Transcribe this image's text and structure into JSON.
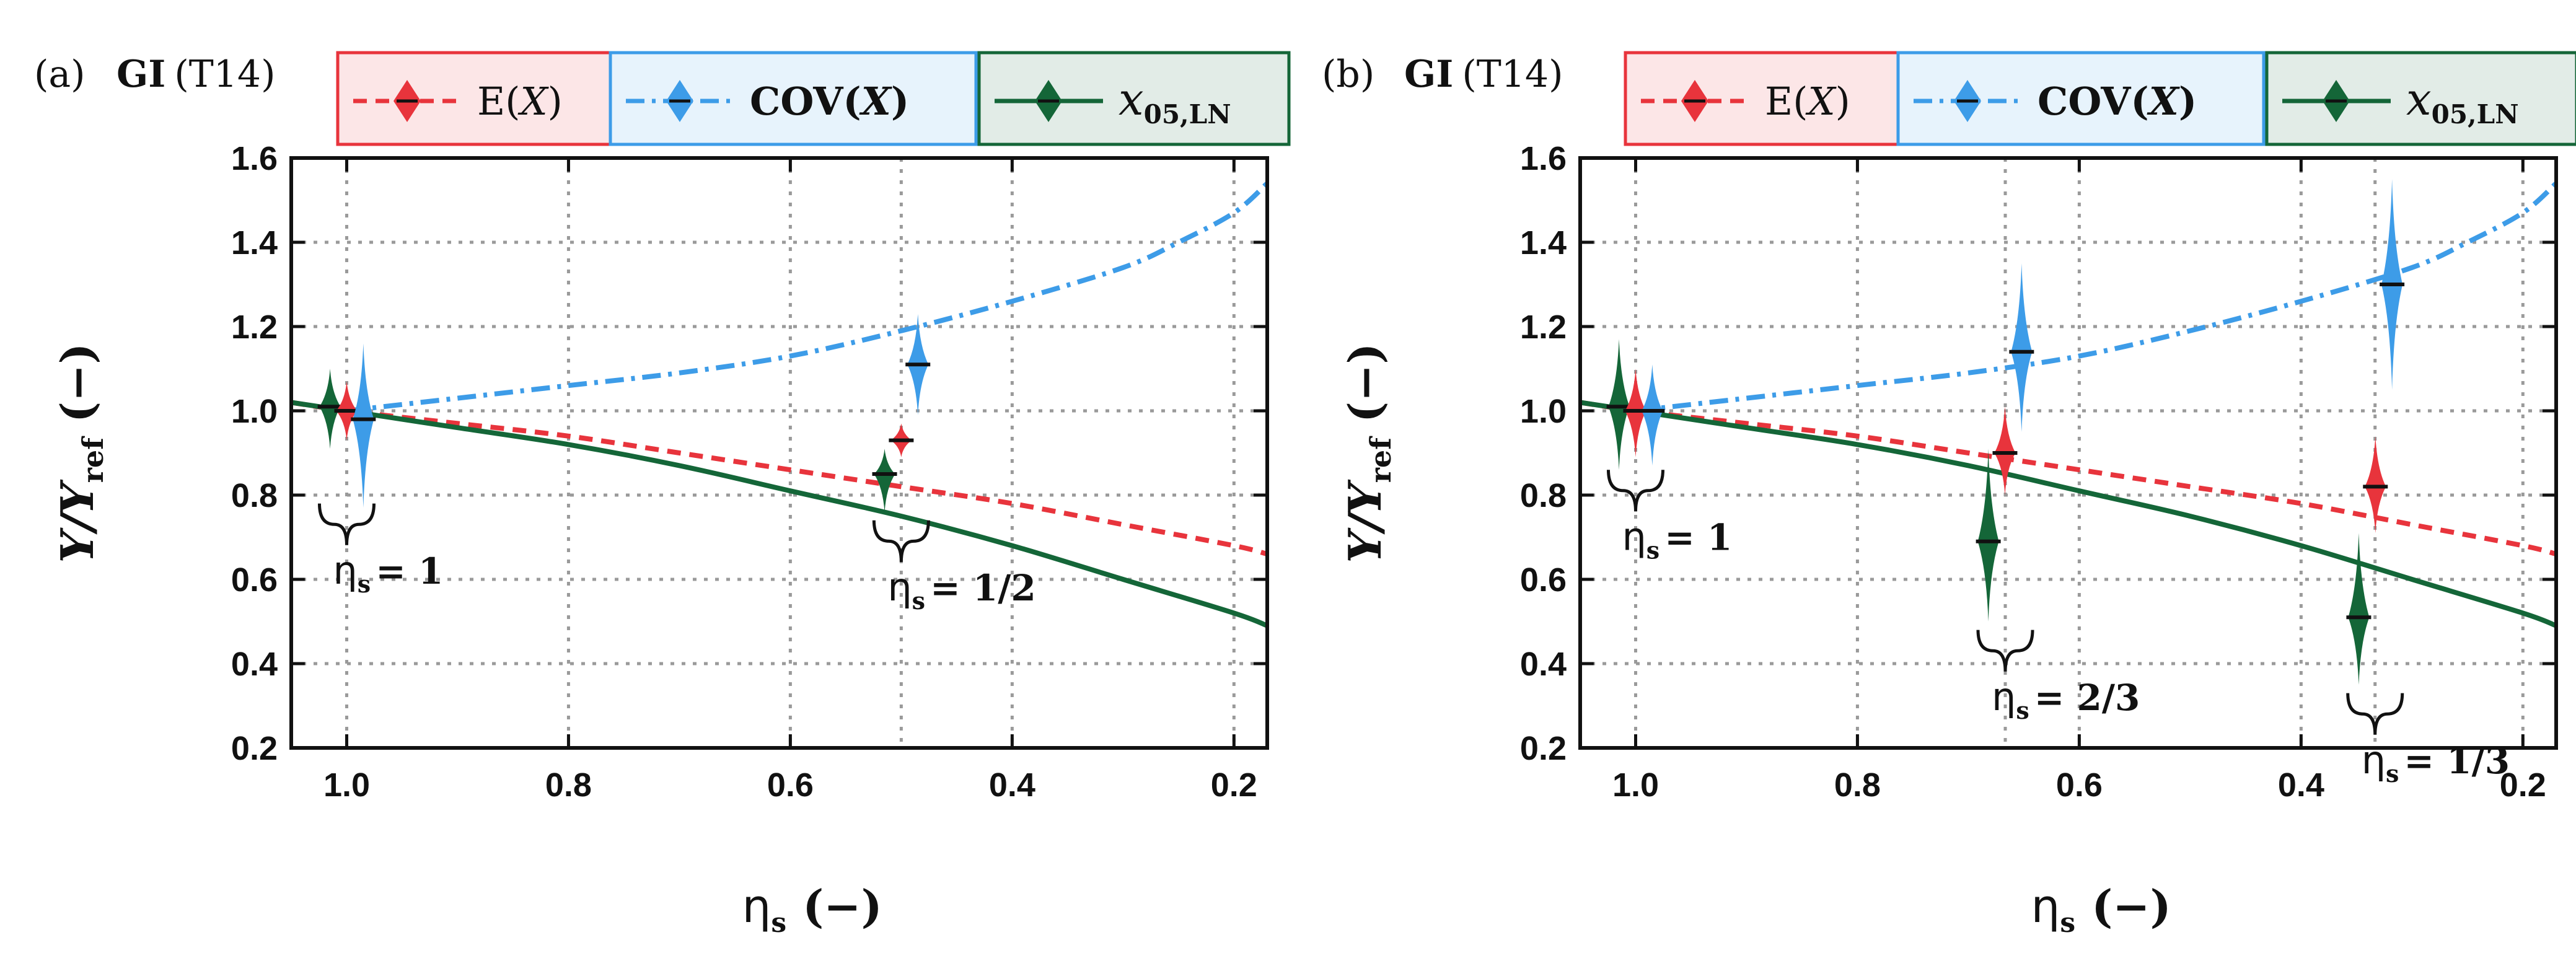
{
  "figure": {
    "series_meta": [
      {
        "key": "E",
        "legend_label": "E(X)",
        "color": "#e8343c",
        "dash": "22 14"
      },
      {
        "key": "COV",
        "legend_label": "COV(X)",
        "color": "#3d9ce8",
        "dash": "30 12 6 12"
      },
      {
        "key": "x05",
        "legend_label": "x05,LN",
        "color": "#146638",
        "dash": ""
      }
    ],
    "label_parts": {
      "gi": "GI",
      "test": "(T14)",
      "cov_text": "COV(",
      "E_text": "E(",
      "X": "X",
      "close": ")",
      "x05_main": "x",
      "x05_sub": "05,LN",
      "xaxis_main": "η",
      "xaxis_sub": "s",
      "xaxis_unit": "(−)",
      "yaxis_main": "Υ/Υ",
      "yaxis_sub": "ref",
      "yaxis_unit": "(−)",
      "eta_main": "η",
      "eta_sub": "s"
    }
  },
  "chart_data": [
    {
      "type": "line",
      "panel_label": "(a)",
      "title": "GI (T14)",
      "xlabel": "ηs (−)",
      "ylabel": "Υ/Υref (−)",
      "xlim": [
        1.05,
        0.17
      ],
      "ylim": [
        0.2,
        1.6
      ],
      "x_reversed": true,
      "grid": true,
      "legend": "top",
      "xticks": [
        1.0,
        0.8,
        0.6,
        0.4,
        0.2
      ],
      "xtick_labels": [
        "1.0",
        "0.8",
        "0.6",
        "0.4",
        "0.2"
      ],
      "yticks": [
        0.2,
        0.4,
        0.6,
        0.8,
        1.0,
        1.2,
        1.4,
        1.6
      ],
      "ytick_labels": [
        "0.2",
        "0.4",
        "0.6",
        "0.8",
        "1.0",
        "1.2",
        "1.4",
        "1.6"
      ],
      "x_extra_gridlines": [
        1.0,
        0.5
      ],
      "series": [
        {
          "name": "E(X)",
          "x": [
            1.05,
            1.0,
            0.9,
            0.8,
            0.7,
            0.6,
            0.5,
            0.4,
            0.3,
            0.2,
            0.17
          ],
          "values": [
            1.02,
            1.0,
            0.97,
            0.94,
            0.9,
            0.86,
            0.82,
            0.78,
            0.73,
            0.68,
            0.66
          ]
        },
        {
          "name": "COV(X)",
          "x": [
            1.0,
            0.9,
            0.8,
            0.7,
            0.6,
            0.5,
            0.4,
            0.3,
            0.25,
            0.2,
            0.17
          ],
          "values": [
            1.0,
            1.03,
            1.06,
            1.09,
            1.13,
            1.19,
            1.26,
            1.34,
            1.4,
            1.47,
            1.54
          ]
        },
        {
          "name": "x05,LN",
          "x": [
            1.05,
            1.0,
            0.9,
            0.8,
            0.7,
            0.6,
            0.5,
            0.4,
            0.3,
            0.2,
            0.17
          ],
          "values": [
            1.02,
            1.0,
            0.96,
            0.92,
            0.87,
            0.81,
            0.75,
            0.68,
            0.6,
            0.52,
            0.49
          ]
        }
      ],
      "violins": [
        {
          "series": "x05,LN",
          "x": 1.015,
          "median": 1.01,
          "low": 0.91,
          "high": 1.1
        },
        {
          "series": "E(X)",
          "x": 1.0,
          "median": 1.0,
          "low": 0.93,
          "high": 1.07
        },
        {
          "series": "COV(X)",
          "x": 0.985,
          "median": 0.98,
          "low": 0.77,
          "high": 1.16
        },
        {
          "series": "x05,LN",
          "x": 0.515,
          "median": 0.85,
          "low": 0.76,
          "high": 0.91
        },
        {
          "series": "E(X)",
          "x": 0.5,
          "median": 0.93,
          "low": 0.89,
          "high": 0.97
        },
        {
          "series": "COV(X)",
          "x": 0.485,
          "median": 1.11,
          "low": 0.99,
          "high": 1.23
        }
      ],
      "annotations": [
        {
          "text_value": "1",
          "x": 1.0,
          "y_top": 0.78
        },
        {
          "text_value": "1/2",
          "x": 0.5,
          "y_top": 0.74
        }
      ]
    },
    {
      "type": "line",
      "panel_label": "(b)",
      "title": "GI (T14)",
      "xlabel": "ηs (−)",
      "ylabel": "Υ/Υref (−)",
      "xlim": [
        1.05,
        0.17
      ],
      "ylim": [
        0.2,
        1.6
      ],
      "x_reversed": true,
      "grid": true,
      "legend": "top",
      "xticks": [
        1.0,
        0.8,
        0.6,
        0.4,
        0.2
      ],
      "xtick_labels": [
        "1.0",
        "0.8",
        "0.6",
        "0.4",
        "0.2"
      ],
      "yticks": [
        0.2,
        0.4,
        0.6,
        0.8,
        1.0,
        1.2,
        1.4,
        1.6
      ],
      "ytick_labels": [
        "0.2",
        "0.4",
        "0.6",
        "0.8",
        "1.0",
        "1.2",
        "1.4",
        "1.6"
      ],
      "x_extra_gridlines": [
        1.0,
        0.6667,
        0.3333
      ],
      "series": [
        {
          "name": "E(X)",
          "x": [
            1.05,
            1.0,
            0.9,
            0.8,
            0.7,
            0.6,
            0.5,
            0.4,
            0.3,
            0.2,
            0.17
          ],
          "values": [
            1.02,
            1.0,
            0.97,
            0.94,
            0.9,
            0.86,
            0.82,
            0.78,
            0.73,
            0.68,
            0.66
          ]
        },
        {
          "name": "COV(X)",
          "x": [
            1.0,
            0.9,
            0.8,
            0.7,
            0.6,
            0.5,
            0.4,
            0.3,
            0.25,
            0.2,
            0.17
          ],
          "values": [
            1.0,
            1.03,
            1.06,
            1.09,
            1.13,
            1.19,
            1.26,
            1.34,
            1.4,
            1.47,
            1.54
          ]
        },
        {
          "name": "x05,LN",
          "x": [
            1.05,
            1.0,
            0.9,
            0.8,
            0.7,
            0.6,
            0.5,
            0.4,
            0.3,
            0.2,
            0.17
          ],
          "values": [
            1.02,
            1.0,
            0.96,
            0.92,
            0.87,
            0.81,
            0.75,
            0.68,
            0.6,
            0.52,
            0.49
          ]
        }
      ],
      "violins": [
        {
          "series": "x05,LN",
          "x": 1.015,
          "median": 1.01,
          "low": 0.86,
          "high": 1.17
        },
        {
          "series": "E(X)",
          "x": 1.0,
          "median": 1.0,
          "low": 0.89,
          "high": 1.1
        },
        {
          "series": "COV(X)",
          "x": 0.985,
          "median": 1.0,
          "low": 0.87,
          "high": 1.11
        },
        {
          "series": "x05,LN",
          "x": 0.682,
          "median": 0.69,
          "low": 0.5,
          "high": 0.91
        },
        {
          "series": "E(X)",
          "x": 0.667,
          "median": 0.9,
          "low": 0.8,
          "high": 1.01
        },
        {
          "series": "COV(X)",
          "x": 0.652,
          "median": 1.14,
          "low": 0.95,
          "high": 1.35
        },
        {
          "series": "x05,LN",
          "x": 0.348,
          "median": 0.51,
          "low": 0.35,
          "high": 0.71
        },
        {
          "series": "E(X)",
          "x": 0.333,
          "median": 0.82,
          "low": 0.71,
          "high": 0.94
        },
        {
          "series": "COV(X)",
          "x": 0.318,
          "median": 1.3,
          "low": 1.05,
          "high": 1.55
        }
      ],
      "annotations": [
        {
          "text_value": "1",
          "x": 1.0,
          "y_top": 0.86
        },
        {
          "text_value": "2/3",
          "x": 0.6667,
          "y_top": 0.48
        },
        {
          "text_value": "1/3",
          "x": 0.3333,
          "y_top": 0.33
        }
      ]
    }
  ]
}
